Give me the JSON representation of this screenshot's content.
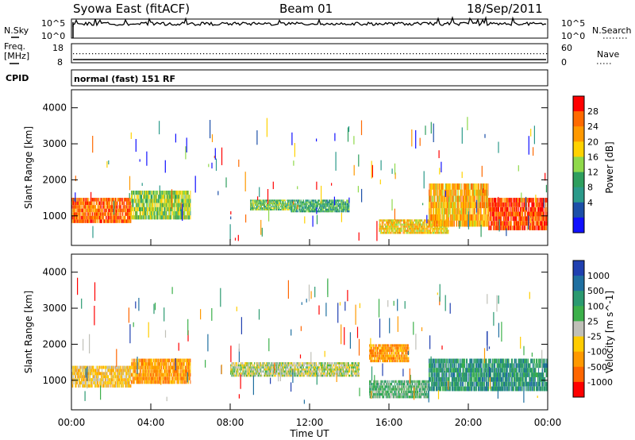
{
  "header": {
    "station": "Syowa East (fitACF)",
    "beam": "Beam 01",
    "date": "18/Sep/2011"
  },
  "noise_panel": {
    "left_label": "N.Sky",
    "right_label": "N.Search",
    "left_ticks": [
      "10^5",
      "10^0"
    ],
    "right_ticks": [
      "10^5",
      "10^0"
    ]
  },
  "freq_panel": {
    "left_label_line1": "Freq.",
    "left_label_line2": "[MHz]",
    "right_label": "Nave",
    "left_ticks": [
      "18",
      "8"
    ],
    "right_ticks": [
      "60",
      "0"
    ]
  },
  "cpid": {
    "label": "CPID",
    "text": "normal (fast) 151 RF"
  },
  "chart_data": [
    {
      "type": "heatmap",
      "title": "",
      "xlabel": "",
      "ylabel": "Slant Range [km]",
      "x_ticks": [
        "00:00",
        "04:00",
        "08:00",
        "12:00",
        "16:00",
        "20:00",
        "00:00"
      ],
      "x_range_hours": [
        0,
        24
      ],
      "ylim": [
        180,
        4500
      ],
      "y_ticks": [
        1000,
        2000,
        3000,
        4000
      ],
      "colorbar_label": "Power [dB]",
      "colorbar_ticks": [
        "28",
        "24",
        "20",
        "16",
        "12",
        "8",
        "4"
      ],
      "colorbar_colors": [
        "#ff0000",
        "#ff6a00",
        "#ff9900",
        "#ffd200",
        "#8fd94a",
        "#2e9e5e",
        "#2b9a8a",
        "#1c4fa8",
        "#1010ff"
      ],
      "bands": [
        {
          "t0": 0.0,
          "t1": 3.0,
          "r0": 800,
          "r1": 1500,
          "value": 24
        },
        {
          "t0": 3.0,
          "t1": 6.0,
          "r0": 900,
          "r1": 1700,
          "value": 14
        },
        {
          "t0": 9.0,
          "t1": 11.0,
          "r0": 1150,
          "r1": 1450,
          "value": 12
        },
        {
          "t0": 11.0,
          "t1": 14.0,
          "r0": 1100,
          "r1": 1450,
          "value": 10
        },
        {
          "t0": 15.5,
          "t1": 19.0,
          "r0": 500,
          "r1": 900,
          "value": 18
        },
        {
          "t0": 18.0,
          "t1": 21.0,
          "r0": 700,
          "r1": 1900,
          "value": 20
        },
        {
          "t0": 21.0,
          "t1": 24.0,
          "r0": 600,
          "r1": 1500,
          "value": 26
        }
      ]
    },
    {
      "type": "heatmap",
      "title": "",
      "xlabel": "Time UT",
      "ylabel": "Slant Range [km]",
      "x_ticks": [
        "00:00",
        "04:00",
        "08:00",
        "12:00",
        "16:00",
        "20:00",
        "00:00"
      ],
      "x_range_hours": [
        0,
        24
      ],
      "ylim": [
        180,
        4500
      ],
      "y_ticks": [
        1000,
        2000,
        3000,
        4000
      ],
      "colorbar_label": "Velocity [m s^-1]",
      "colorbar_ticks": [
        "1000",
        "500",
        "100",
        "25",
        "-25",
        "-100",
        "-500",
        "-1000"
      ],
      "colorbar_colors": [
        "#2040b0",
        "#1f6fa0",
        "#2b9a70",
        "#3cb04a",
        "#c0c0b8",
        "#ffcc00",
        "#ff9900",
        "#ff6600",
        "#ff0000"
      ],
      "bands": [
        {
          "t0": 0.0,
          "t1": 3.0,
          "r0": 800,
          "r1": 1400,
          "value": -100
        },
        {
          "t0": 3.0,
          "t1": 6.0,
          "r0": 900,
          "r1": 1600,
          "value": -200
        },
        {
          "t0": 8.0,
          "t1": 14.5,
          "r0": 1100,
          "r1": 1500,
          "value": 0
        },
        {
          "t0": 15.0,
          "t1": 18.0,
          "r0": 500,
          "r1": 1000,
          "value": 50
        },
        {
          "t0": 15.0,
          "t1": 17.0,
          "r0": 1500,
          "r1": 2000,
          "value": -150
        },
        {
          "t0": 18.0,
          "t1": 24.0,
          "r0": 700,
          "r1": 1600,
          "value": 100
        }
      ]
    }
  ]
}
